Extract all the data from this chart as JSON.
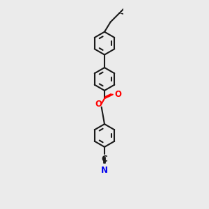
{
  "bg_color": "#ebebeb",
  "bond_color": "#1a1a1a",
  "oxygen_color": "#ff0000",
  "nitrogen_color": "#0000ee",
  "lw": 1.5,
  "figsize": [
    3.0,
    3.0
  ],
  "dpi": 100,
  "xlim": [
    3.8,
    6.2
  ],
  "ylim": [
    0.3,
    13.2
  ]
}
